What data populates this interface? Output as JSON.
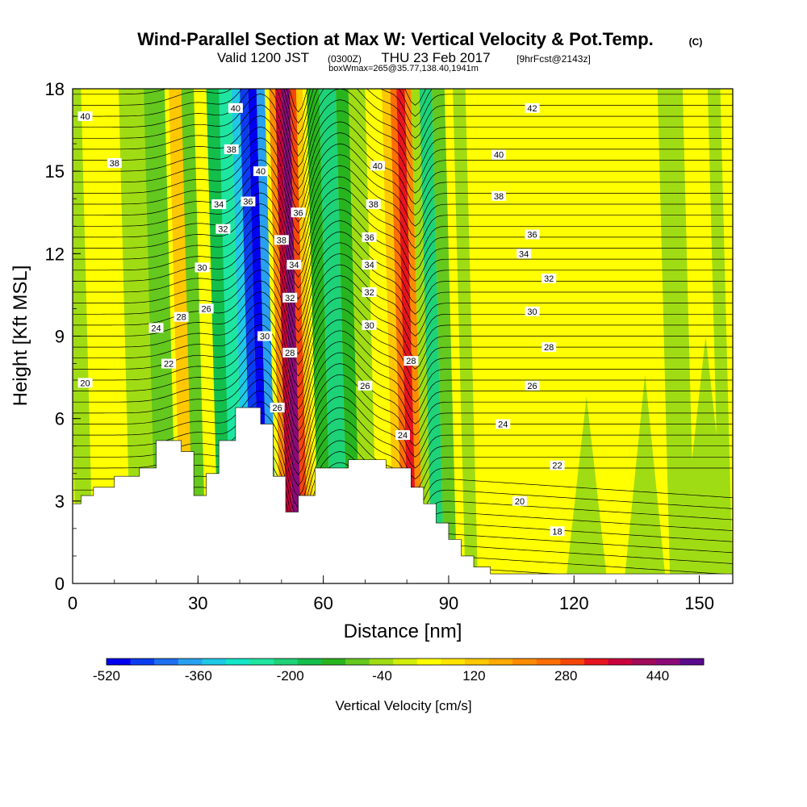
{
  "chart_data": {
    "type": "heatmap",
    "title": "Wind-Parallel Section at Max W: Vertical Velocity & Pot.Temp.",
    "title_mark": "(C)",
    "subtitle_main": "Valid 1200 JST",
    "subtitle_utc": "(0300Z)",
    "subtitle_date": "THU 23 Feb 2017",
    "subtitle_fcst": "[9hrFcst@2143z]",
    "subtitle2": "boxWmax=265@35.77,138.40,1941m",
    "xlabel": "Distance [nm]",
    "ylabel": "Height [Kft MSL]",
    "xlim": [
      0,
      158
    ],
    "ylim": [
      0,
      18
    ],
    "x_ticks": [
      "0",
      "30",
      "60",
      "90",
      "120",
      "150"
    ],
    "x_tick_values": [
      0,
      30,
      60,
      90,
      120,
      150
    ],
    "y_ticks": [
      "0",
      "3",
      "6",
      "9",
      "12",
      "15",
      "18"
    ],
    "y_tick_values": [
      0,
      3,
      6,
      9,
      12,
      15,
      18
    ],
    "colorbar": {
      "label": "Vertical Velocity [cm/s]",
      "tick_labels": [
        "-520",
        "-360",
        "-200",
        "-40",
        "120",
        "280",
        "440"
      ],
      "tick_values": [
        -520,
        -360,
        -200,
        -40,
        120,
        280,
        440
      ],
      "range": [
        -520,
        520
      ],
      "colors": [
        "#0000f0",
        "#0a3cf0",
        "#1e6ef0",
        "#28a0f0",
        "#1ec8e6",
        "#14e6c8",
        "#1ee6a0",
        "#1ed278",
        "#14be4b",
        "#28b41e",
        "#64c81e",
        "#a0dc14",
        "#d2ee0a",
        "#ffff00",
        "#ffe400",
        "#ffc800",
        "#ffaa00",
        "#ff8c00",
        "#ff6e00",
        "#f5460a",
        "#e6141e",
        "#c8003c",
        "#a00a5a",
        "#8c0a78",
        "#5a0a8c"
      ]
    },
    "terrain_profile": {
      "x": [
        0,
        2,
        2,
        5,
        5,
        10,
        10,
        16,
        16,
        20,
        20,
        26,
        26,
        29,
        29,
        32,
        32,
        35,
        35,
        39,
        39,
        45,
        45,
        48,
        48,
        51,
        51,
        54,
        54,
        58,
        58,
        66,
        66,
        75,
        75,
        81,
        81,
        84,
        84,
        87,
        87,
        90,
        90,
        93,
        93,
        96,
        96,
        100,
        100,
        158
      ],
      "y": [
        2.9,
        2.9,
        3.2,
        3.2,
        3.5,
        3.5,
        3.9,
        3.9,
        4.2,
        4.2,
        5.2,
        5.2,
        4.8,
        4.8,
        3.2,
        3.2,
        4.0,
        4.0,
        5.2,
        5.2,
        6.4,
        6.4,
        5.8,
        5.8,
        3.9,
        3.9,
        2.6,
        2.6,
        3.2,
        3.2,
        4.2,
        4.2,
        4.5,
        4.5,
        4.2,
        4.2,
        3.5,
        3.5,
        2.9,
        2.9,
        2.2,
        2.2,
        1.6,
        1.6,
        1.0,
        1.0,
        0.6,
        0.6,
        0.35,
        0.35
      ]
    },
    "updraft_cores": [
      {
        "x": 52,
        "y_bottom": 3,
        "y_top": 18,
        "tilt_nm": 4,
        "max_w": 440
      },
      {
        "x": 82,
        "y_bottom": 8,
        "y_top": 18,
        "tilt_nm": 3,
        "max_w": 320
      }
    ],
    "downdraft_cores": [
      {
        "x": 45,
        "y_bottom": 6,
        "y_top": 18,
        "tilt_nm": -4,
        "min_w": -520
      }
    ],
    "theta_contour_labels": [
      {
        "text": "40",
        "x": 3,
        "y": 17.0
      },
      {
        "text": "38",
        "x": 10,
        "y": 15.3
      },
      {
        "text": "40",
        "x": 39,
        "y": 17.3
      },
      {
        "text": "38",
        "x": 38,
        "y": 15.8
      },
      {
        "text": "40",
        "x": 45,
        "y": 15.0
      },
      {
        "text": "36",
        "x": 42,
        "y": 13.9
      },
      {
        "text": "34",
        "x": 35,
        "y": 13.8
      },
      {
        "text": "32",
        "x": 36,
        "y": 12.9
      },
      {
        "text": "30",
        "x": 31,
        "y": 11.5
      },
      {
        "text": "28",
        "x": 26,
        "y": 9.7
      },
      {
        "text": "26",
        "x": 32,
        "y": 10.0
      },
      {
        "text": "24",
        "x": 20,
        "y": 9.3
      },
      {
        "text": "22",
        "x": 23,
        "y": 8.0
      },
      {
        "text": "20",
        "x": 3,
        "y": 7.3
      },
      {
        "text": "30",
        "x": 46,
        "y": 9.0
      },
      {
        "text": "26",
        "x": 49,
        "y": 6.4
      },
      {
        "text": "36",
        "x": 54,
        "y": 13.5
      },
      {
        "text": "38",
        "x": 50,
        "y": 12.5
      },
      {
        "text": "34",
        "x": 53,
        "y": 11.6
      },
      {
        "text": "32",
        "x": 52,
        "y": 10.4
      },
      {
        "text": "28",
        "x": 52,
        "y": 8.4
      },
      {
        "text": "40",
        "x": 73,
        "y": 15.2
      },
      {
        "text": "38",
        "x": 72,
        "y": 13.8
      },
      {
        "text": "36",
        "x": 71,
        "y": 12.6
      },
      {
        "text": "34",
        "x": 71,
        "y": 11.6
      },
      {
        "text": "32",
        "x": 71,
        "y": 10.6
      },
      {
        "text": "30",
        "x": 71,
        "y": 9.4
      },
      {
        "text": "26",
        "x": 70,
        "y": 7.2
      },
      {
        "text": "28",
        "x": 81,
        "y": 8.1
      },
      {
        "text": "24",
        "x": 79,
        "y": 5.4
      },
      {
        "text": "42",
        "x": 110,
        "y": 17.3
      },
      {
        "text": "40",
        "x": 102,
        "y": 15.6
      },
      {
        "text": "38",
        "x": 102,
        "y": 14.1
      },
      {
        "text": "36",
        "x": 110,
        "y": 12.7
      },
      {
        "text": "34",
        "x": 108,
        "y": 12.0
      },
      {
        "text": "32",
        "x": 114,
        "y": 11.1
      },
      {
        "text": "30",
        "x": 110,
        "y": 9.9
      },
      {
        "text": "28",
        "x": 114,
        "y": 8.6
      },
      {
        "text": "26",
        "x": 110,
        "y": 7.2
      },
      {
        "text": "24",
        "x": 103,
        "y": 5.8
      },
      {
        "text": "22",
        "x": 116,
        "y": 4.3
      },
      {
        "text": "20",
        "x": 107,
        "y": 3.0
      },
      {
        "text": "18",
        "x": 116,
        "y": 1.9
      }
    ]
  }
}
